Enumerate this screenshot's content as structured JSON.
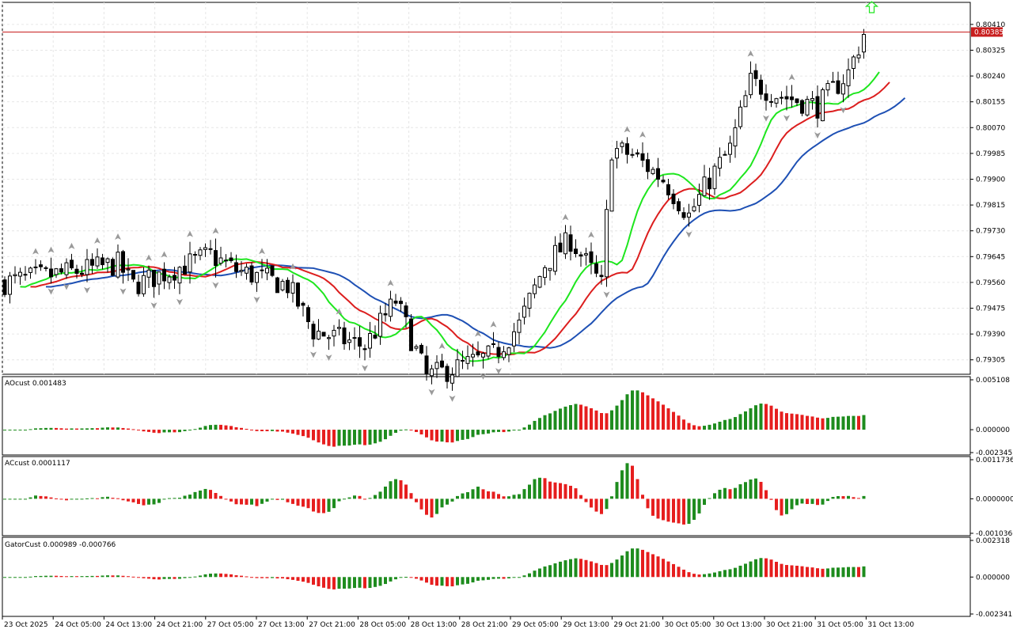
{
  "chart_data": [
    {
      "type": "candlestick",
      "pane": "main",
      "price_range": [
        0.7926,
        0.8048
      ],
      "y_ticks": [
        "0.80410",
        "0.80325",
        "0.80240",
        "0.80155",
        "0.80070",
        "0.79985",
        "0.79900",
        "0.79815",
        "0.79730",
        "0.79645",
        "0.79560",
        "0.79475",
        "0.79390",
        "0.79305"
      ],
      "current_price": "0.80385",
      "colors": {
        "up_candle": "#ffffff",
        "down_candle": "#000000",
        "jaw": "#1e50b4",
        "teeth": "#dc1e1e",
        "lips": "#1ee61e",
        "price_line": "#c81e1e",
        "price_box": "#c81e1e"
      },
      "icons": {
        "fractal_up": "arrow-up-icon",
        "fractal_down": "arrow-down-icon",
        "signal": "green-up-arrow-icon"
      }
    },
    {
      "type": "histogram",
      "pane": "ao",
      "label": "AOcust 0.001483",
      "range": [
        -0.002345,
        0.005108
      ],
      "ticks": [
        "0.005108",
        "0.000000",
        "-0.002345"
      ],
      "colors": {
        "up": "#1e8c1e",
        "down": "#e61e1e"
      }
    },
    {
      "type": "histogram",
      "pane": "ac",
      "label": "ACcust 0.0001117",
      "range": [
        -0.0010366,
        0.0011736
      ],
      "ticks": [
        "0.0011736",
        "0.0000000",
        "-0.0010366"
      ],
      "colors": {
        "up": "#1e8c1e",
        "down": "#e61e1e"
      }
    },
    {
      "type": "histogram",
      "pane": "gator",
      "label": "GatorCust 0.000989 -0.000766",
      "range": [
        -0.002341,
        0.002318
      ],
      "ticks": [
        "0.002318",
        "0.000000",
        "-0.002341"
      ],
      "colors": {
        "up": "#1e8c1e",
        "down": "#e61e1e"
      }
    }
  ],
  "time_axis": [
    "23 Oct 2025",
    "24 Oct 05:00",
    "24 Oct 13:00",
    "24 Oct 21:00",
    "27 Oct 05:00",
    "27 Oct 13:00",
    "27 Oct 21:00",
    "28 Oct 05:00",
    "28 Oct 13:00",
    "28 Oct 21:00",
    "29 Oct 05:00",
    "29 Oct 13:00",
    "29 Oct 21:00",
    "30 Oct 05:00",
    "30 Oct 13:00",
    "30 Oct 21:00",
    "31 Oct 05:00",
    "31 Oct 13:00"
  ]
}
